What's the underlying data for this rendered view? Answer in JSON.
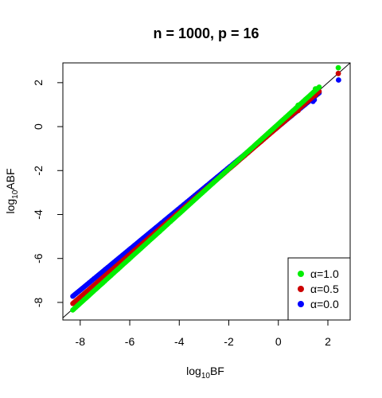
{
  "chart_data": {
    "type": "scatter",
    "title": "n = 1000, p = 16",
    "xlabel": {
      "base": "log",
      "sub": "10",
      "rest": "BF"
    },
    "ylabel": {
      "base": "log",
      "sub": "10",
      "rest": "ABF"
    },
    "xlim": [
      -8.7,
      2.9
    ],
    "ylim": [
      -8.8,
      2.9
    ],
    "x_ticks": [
      -8,
      -6,
      -4,
      -2,
      0,
      2
    ],
    "y_ticks": [
      -8,
      -6,
      -4,
      -2,
      0,
      2
    ],
    "x_tick_labels": [
      "-8",
      "-6",
      "-4",
      "-2",
      "0",
      "2"
    ],
    "y_tick_labels": [
      "-8",
      "-6",
      "-4",
      "-2",
      "0",
      "2"
    ],
    "reference_line": {
      "slope": 1,
      "intercept": 0
    },
    "grid": false,
    "legend_position": "bottom-right",
    "series": [
      {
        "name": "α=0.0",
        "color": "#0000ff",
        "x_min": -8.3,
        "x_max": 2.4,
        "slope": 0.93,
        "intercept": 0.0,
        "outliers": [
          [
            2.43,
            2.12
          ],
          [
            1.45,
            1.22
          ],
          [
            1.4,
            1.15
          ]
        ]
      },
      {
        "name": "α=0.5",
        "color": "#cc0000",
        "x_min": -8.3,
        "x_max": 2.4,
        "slope": 0.97,
        "intercept": 0.0,
        "outliers": [
          [
            2.42,
            2.42
          ],
          [
            1.5,
            1.43
          ],
          [
            0.8,
            0.73
          ]
        ]
      },
      {
        "name": "α=1.0",
        "color": "#00ee00",
        "x_min": -8.3,
        "x_max": 2.4,
        "slope": 1.02,
        "intercept": 0.12,
        "outliers": [
          [
            2.42,
            2.68
          ],
          [
            1.5,
            1.72
          ],
          [
            0.8,
            0.97
          ]
        ]
      }
    ]
  }
}
